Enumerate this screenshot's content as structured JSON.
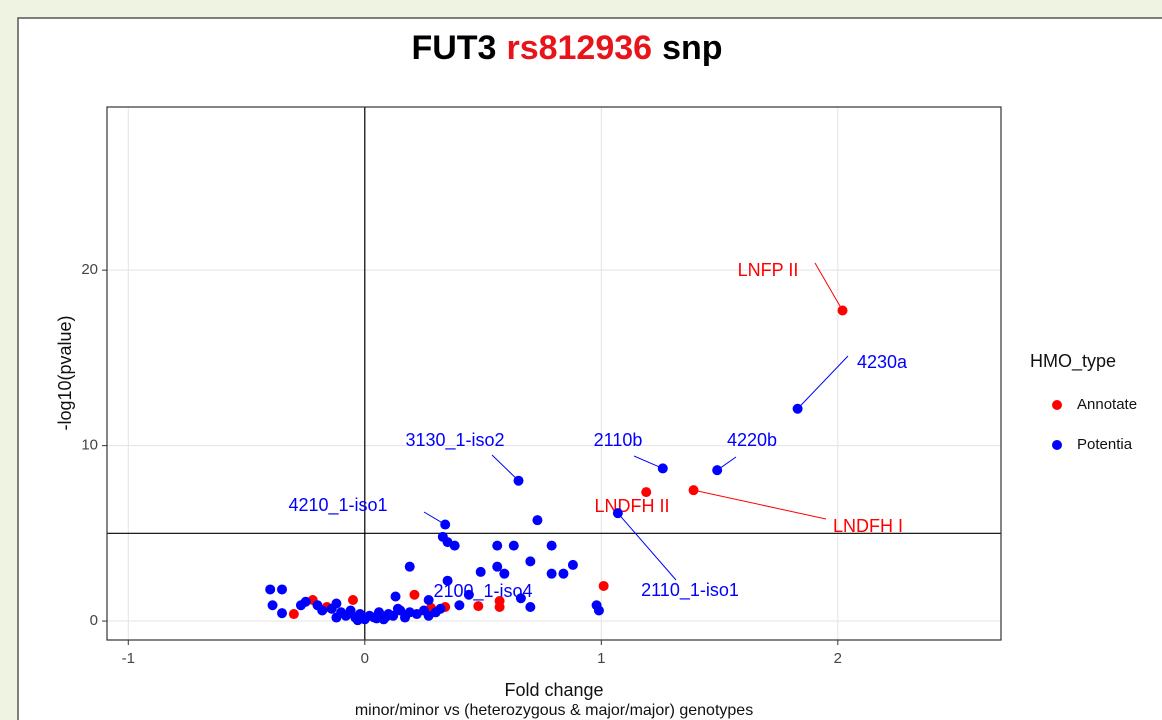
{
  "chart_data": {
    "type": "scatter",
    "title": [
      "FUT3",
      "rs812936",
      "snp"
    ],
    "title_colors": [
      "#000000",
      "#e8141a",
      "#000000"
    ],
    "x_label": "Fold change",
    "x_label_2": "minor/minor vs (heterozygous & major/major) genotypes",
    "y_label": "-log10(pvalue)",
    "xlim": [
      -1.09,
      2.69
    ],
    "ylim": [
      -1.08,
      29.3
    ],
    "xticks": [
      -1,
      0,
      1,
      2
    ],
    "yticks": [
      0,
      10,
      20
    ],
    "grid": true,
    "vline": 0,
    "hline": 5,
    "legend_title": "HMO_type",
    "legend_position": "right",
    "series": [
      {
        "name": "Annotate",
        "color": "#ff0000",
        "x": [
          2.02,
          1.39,
          1.19,
          1.01,
          0.21,
          0.57,
          0.57,
          0.48,
          0.34,
          -0.05,
          -0.16,
          -0.22,
          -0.3,
          0.28
        ],
        "values": [
          17.7,
          7.46,
          7.35,
          2.0,
          1.5,
          1.14,
          0.8,
          0.85,
          0.8,
          1.2,
          0.8,
          1.2,
          0.4,
          0.75
        ],
        "labels": [
          "LNFP II",
          "LNDFH I",
          "LNDFH II",
          null,
          null,
          null,
          null,
          null,
          null,
          null,
          null,
          null,
          null,
          null
        ]
      },
      {
        "name": "Potentia",
        "color": "#0000ff",
        "x": [
          1.83,
          1.49,
          1.26,
          0.65,
          0.34,
          1.07,
          0.59,
          0.73,
          0.33,
          0.35,
          0.38,
          0.56,
          0.63,
          0.79,
          0.7,
          0.56,
          0.19,
          0.79,
          0.84,
          0.88,
          0.49,
          0.35,
          0.44,
          0.66,
          0.7,
          0.98,
          0.99,
          -0.4,
          -0.35,
          -0.39,
          -0.35,
          -0.27,
          -0.25,
          -0.2,
          -0.18,
          -0.14,
          -0.12,
          -0.1,
          -0.08,
          -0.06,
          -0.04,
          -0.02,
          0.0,
          0.02,
          0.04,
          0.06,
          0.08,
          0.1,
          0.12,
          0.15,
          0.17,
          0.19,
          0.22,
          0.25,
          0.27,
          0.3,
          0.32,
          0.13,
          0.27,
          0.4,
          -0.12,
          -0.03,
          0.05,
          0.14,
          0.09
        ],
        "values": [
          12.1,
          8.6,
          8.7,
          8.0,
          5.5,
          6.15,
          2.7,
          5.75,
          4.8,
          4.5,
          4.3,
          4.3,
          4.3,
          4.3,
          3.4,
          3.1,
          3.1,
          2.7,
          2.7,
          3.2,
          2.8,
          2.3,
          1.5,
          1.3,
          0.8,
          0.9,
          0.6,
          1.8,
          1.8,
          0.9,
          0.45,
          0.9,
          1.1,
          0.9,
          0.6,
          0.7,
          1.0,
          0.5,
          0.3,
          0.6,
          0.2,
          0.4,
          0.1,
          0.3,
          0.2,
          0.5,
          0.1,
          0.4,
          0.3,
          0.6,
          0.2,
          0.5,
          0.4,
          0.6,
          0.3,
          0.5,
          0.7,
          1.4,
          1.2,
          0.9,
          0.2,
          0.05,
          0.15,
          0.7,
          0.25
        ],
        "labels": [
          "4230a",
          "4220b",
          "2110b",
          "3130_1-iso2",
          "4210_1-iso1",
          "2110_1-iso1",
          "2100_1-iso4",
          null,
          null,
          null,
          null,
          null,
          null,
          null,
          null,
          null,
          null,
          null,
          null,
          null,
          null,
          null,
          null,
          null,
          null,
          null,
          null,
          null,
          null,
          null,
          null,
          null,
          null,
          null,
          null,
          null,
          null,
          null,
          null,
          null,
          null,
          null,
          null,
          null,
          null,
          null,
          null,
          null,
          null,
          null,
          null,
          null,
          null,
          null,
          null,
          null,
          null,
          null,
          null,
          null,
          null,
          null,
          null,
          null,
          null
        ]
      }
    ]
  }
}
